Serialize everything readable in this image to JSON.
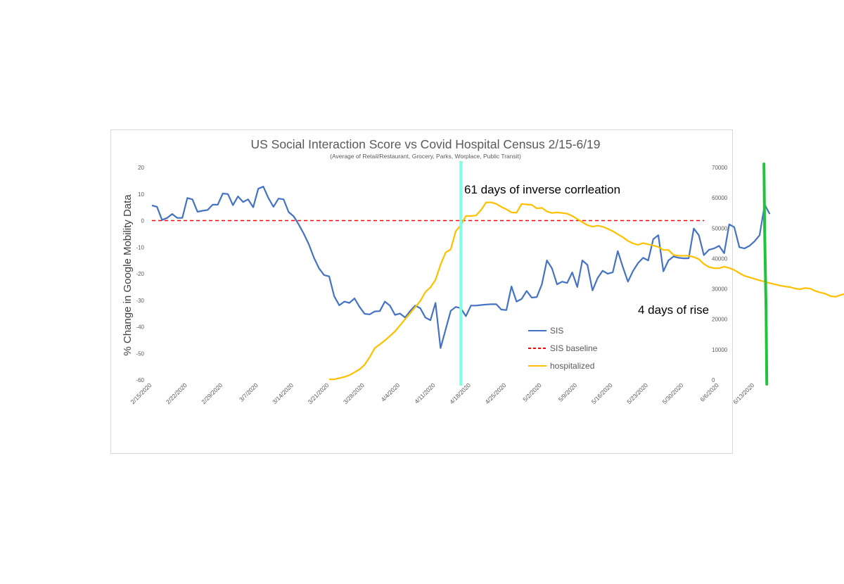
{
  "chart_data": {
    "type": "line",
    "title": "US Social Interaction Score vs Covid Hospital Census 2/15-6/19",
    "subtitle": "(Average of Retail/Restaurant, Grocery, Parks, Worplace, Public Transit)",
    "ylabel": "% Change in Google Mobility Data",
    "ylim": [
      -60,
      20
    ],
    "y_ticks": [
      "20",
      "10",
      "0",
      "-10",
      "-20",
      "-30",
      "-40",
      "-50",
      "-60"
    ],
    "y2lim": [
      0,
      70000
    ],
    "y2_ticks": [
      "70000",
      "60000",
      "50000",
      "40000",
      "30000",
      "20000",
      "10000",
      "0"
    ],
    "x_ticks": [
      "2/15/2020",
      "2/22/2020",
      "2/29/2020",
      "3/7/2020",
      "3/14/2020",
      "3/21/2020",
      "3/28/2020",
      "4/4/2020",
      "4/11/2020",
      "4/18/2020",
      "4/25/2020",
      "5/2/2020",
      "5/9/2020",
      "5/16/2020",
      "5/23/2020",
      "5/30/2020",
      "6/6/2020",
      "6/13/2020"
    ],
    "start_date": "2/15/2020",
    "series": [
      {
        "name": "SIS",
        "axis": "left",
        "color": "#4472c4",
        "values": [
          5.7,
          5.2,
          0.2,
          1,
          2.5,
          1,
          1,
          8.5,
          8,
          3.3,
          3.7,
          4,
          6,
          6,
          10.2,
          10,
          5.8,
          9.1,
          7,
          8,
          5,
          12,
          12.8,
          8.5,
          5.2,
          8.3,
          8,
          3.2,
          1.6,
          -1.5,
          -5,
          -9,
          -14,
          -18,
          -20.5,
          -21,
          -28.5,
          -31.9,
          -30.5,
          -31,
          -29.3,
          -32.5,
          -35.1,
          -35.3,
          -34.2,
          -34.1,
          -30.5,
          -32,
          -35.5,
          -35,
          -36.5,
          -34,
          -32,
          -33,
          -36.5,
          -37.5,
          -31,
          -48,
          -41,
          -34,
          -32.5,
          -33,
          -36,
          -32,
          -32,
          -31.8,
          -31.6,
          -31.5,
          -31.5,
          -33.5,
          -33.7,
          -24.8,
          -30.5,
          -29.5,
          -26.5,
          -29,
          -28.8,
          -24,
          -15,
          -18,
          -24,
          -23,
          -23.5,
          -19.5,
          -25,
          -15,
          -16.7,
          -26.3,
          -21.7,
          -18.9,
          -20,
          -19.5,
          -11.5,
          -17.5,
          -23,
          -19,
          -16,
          -14,
          -15,
          -7,
          -5.5,
          -19.1,
          -15,
          -13.5,
          -14,
          -14.2,
          -14.2,
          -3,
          -5.5,
          -13,
          -11,
          -10.5,
          -9.5,
          -12.3,
          -1.4,
          -2.5,
          -10,
          -10.5,
          -9.5,
          -7.8,
          -5.5,
          6,
          2.5
        ]
      },
      {
        "name": "SIS baseline",
        "axis": "left",
        "color": "#ff0000",
        "values": [
          0,
          0
        ]
      },
      {
        "name": "hospitalized",
        "axis": "right",
        "color": "#ffc000",
        "start_index": 35,
        "values": [
          200,
          200,
          600,
          1000,
          1600,
          2500,
          3500,
          5000,
          7500,
          10500,
          11700,
          13000,
          14500,
          16000,
          18000,
          20000,
          22000,
          24000,
          26000,
          29000,
          30500,
          33000,
          38000,
          42000,
          43000,
          49000,
          51000,
          54000,
          54000,
          54200,
          56000,
          58500,
          58500,
          58000,
          57000,
          56200,
          55200,
          55100,
          58000,
          57800,
          57700,
          56500,
          56700,
          55500,
          55000,
          55200,
          55000,
          54800,
          54000,
          53000,
          52000,
          51000,
          50500,
          50800,
          50500,
          49800,
          49000,
          48000,
          47000,
          45800,
          45000,
          44500,
          45100,
          44700,
          44300,
          43800,
          42800,
          42800,
          41200,
          40900,
          40900,
          40900,
          40500,
          39800,
          38200,
          37200,
          36800,
          36800,
          37300,
          36900,
          36200,
          35200,
          34300,
          33800,
          33300,
          32800,
          32400,
          31900,
          31500,
          31100,
          30800,
          30600,
          30100,
          29900,
          30300,
          30100,
          29300,
          28800,
          28400,
          27600,
          27400,
          28000,
          28400,
          28400,
          28600
        ]
      }
    ],
    "legend": [
      {
        "label": "SIS",
        "color": "#4472c4",
        "style": "solid"
      },
      {
        "label": "SIS baseline",
        "color": "#ff0000",
        "style": "dashed"
      },
      {
        "label": "hospitalized",
        "color": "#ffc000",
        "style": "solid"
      }
    ],
    "legend_position": "right-center",
    "annotations": [
      {
        "text": "61 days of inverse corrleation"
      },
      {
        "text": "4 days of rise"
      }
    ],
    "markers": [
      {
        "name": "cyan-vertical-line",
        "color": "#7fffe4",
        "at_index": 61
      },
      {
        "name": "green-vertical-line",
        "color": "#22c33c",
        "at_index": 121
      }
    ]
  }
}
